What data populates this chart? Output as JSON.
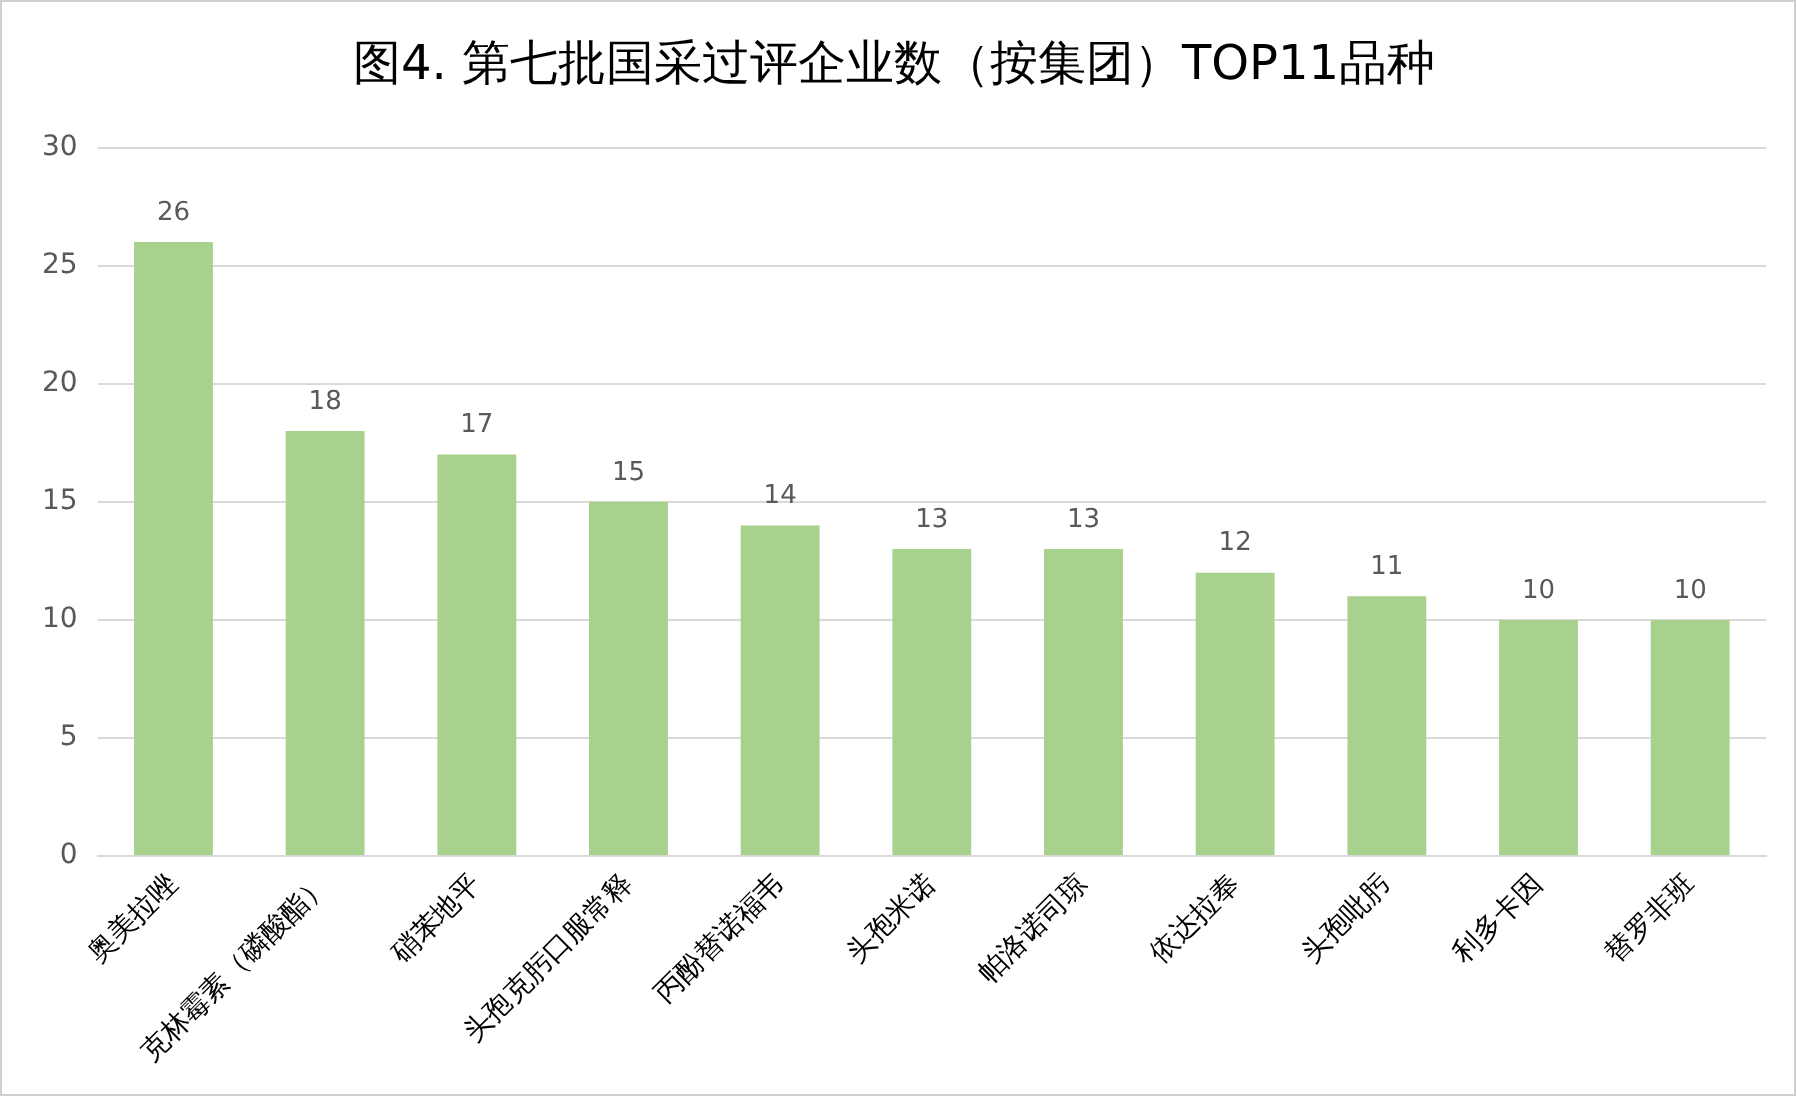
{
  "chart_data": {
    "type": "bar",
    "title": "图4. 第七批国采过评企业数（按集团）TOP11品种",
    "categories": [
      "奥美拉唑",
      "克林霉素（磷酸酯）",
      "硝苯地平",
      "头孢克肟口服常释",
      "丙酚替诺福韦",
      "头孢米诺",
      "帕洛诺司琼",
      "依达拉奉",
      "头孢吡肟",
      "利多卡因",
      "替罗非班"
    ],
    "values": [
      26,
      18,
      17,
      15,
      14,
      13,
      13,
      12,
      11,
      10,
      10
    ],
    "color": "#a9d18e",
    "ylim": [
      0,
      30
    ],
    "yticks": [
      0,
      5,
      10,
      15,
      20,
      25,
      30
    ],
    "grid": "y",
    "legend": false,
    "data_labels": true
  }
}
